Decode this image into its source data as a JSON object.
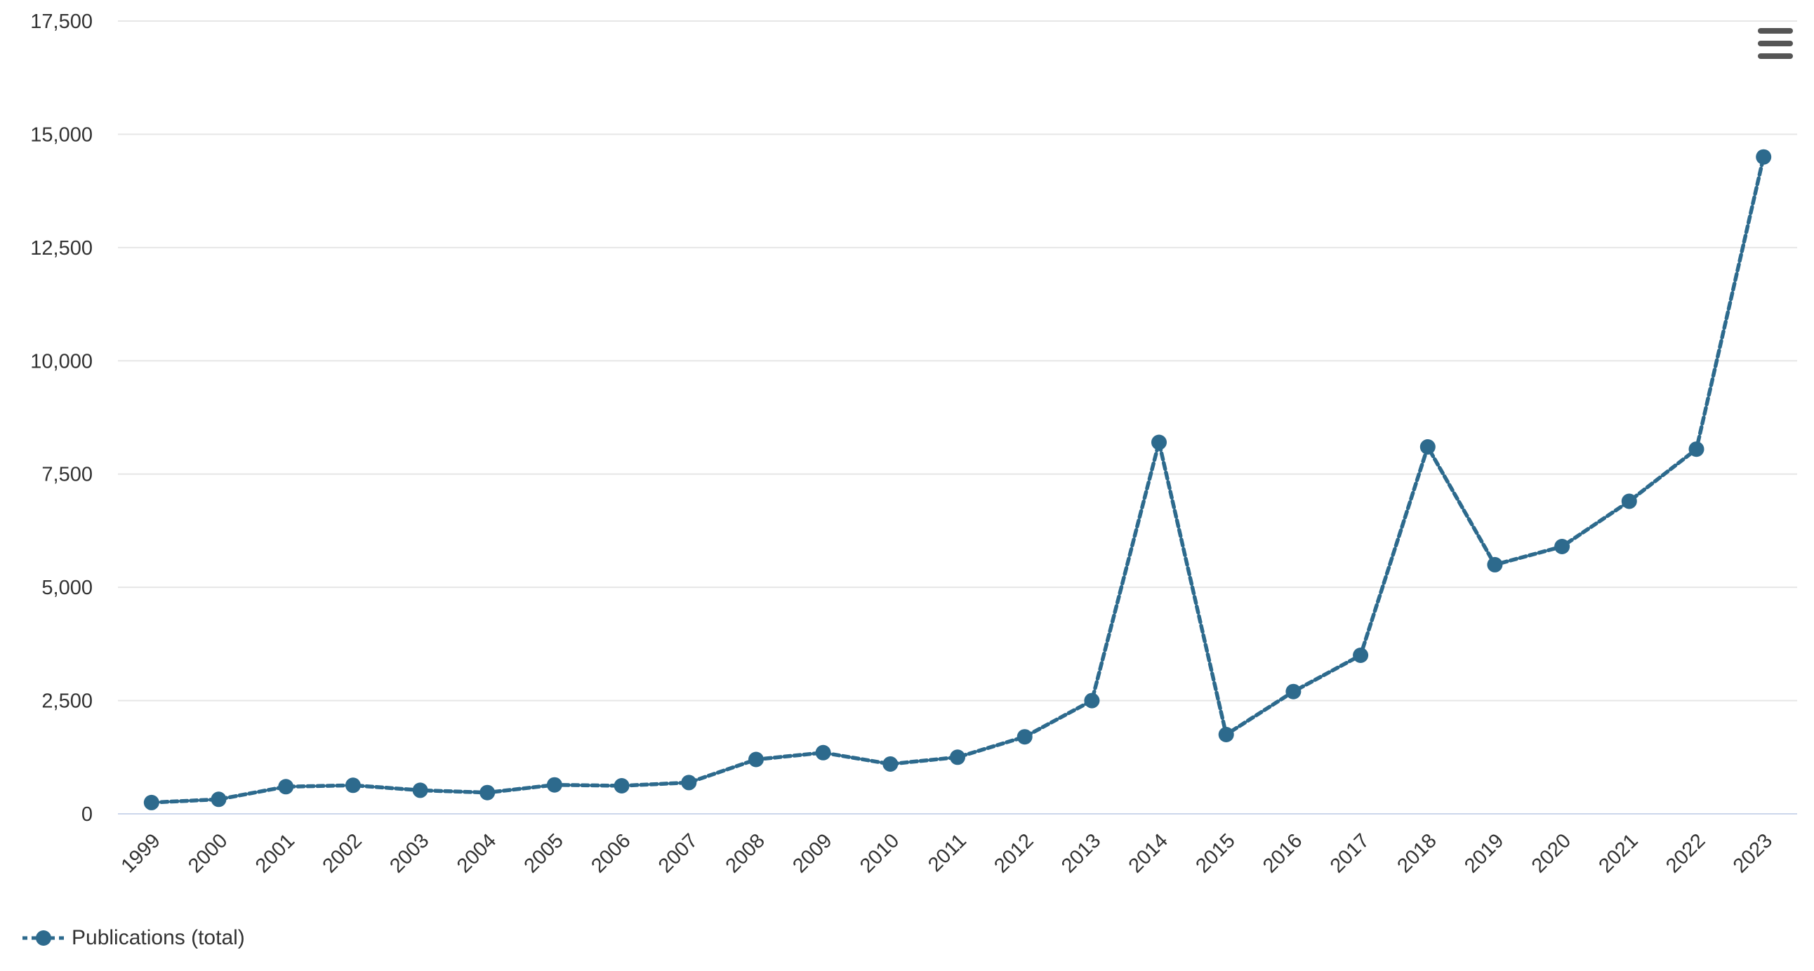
{
  "chart_data": {
    "type": "line",
    "title": "",
    "categories": [
      "1999",
      "2000",
      "2001",
      "2002",
      "2003",
      "2004",
      "2005",
      "2006",
      "2007",
      "2008",
      "2009",
      "2010",
      "2011",
      "2012",
      "2013",
      "2014",
      "2015",
      "2016",
      "2017",
      "2018",
      "2019",
      "2020",
      "2021",
      "2022",
      "2023"
    ],
    "series": [
      {
        "name": "Publications (total)",
        "values": [
          250,
          320,
          600,
          630,
          520,
          470,
          640,
          620,
          690,
          1200,
          1350,
          1100,
          1250,
          1700,
          2500,
          8200,
          1750,
          2700,
          3500,
          8100,
          5500,
          5900,
          6900,
          8050,
          14500
        ]
      }
    ],
    "xlabel": "",
    "ylabel": "",
    "ylim": [
      0,
      17500
    ],
    "ytick_interval": 2500,
    "yticks": [
      0,
      2500,
      5000,
      7500,
      10000,
      12500,
      15000,
      17500
    ],
    "ytick_labels": [
      "0",
      "2,500",
      "5,000",
      "7,500",
      "10,000",
      "12,500",
      "15,000",
      "17,500"
    ],
    "grid": true,
    "x_label_rotation": -45,
    "legend_position": "bottom-left",
    "colors": {
      "line": "#2d6a8d",
      "marker": "#2d6a8d",
      "gridline": "#e6e6e6",
      "zero_axis_line": "#ccd6eb",
      "axis_label": "#333333",
      "menu_icon": "#555555",
      "background": "#ffffff"
    }
  },
  "legend": {
    "label": "Publications (total)"
  },
  "menu": {
    "icon": "hamburger"
  }
}
